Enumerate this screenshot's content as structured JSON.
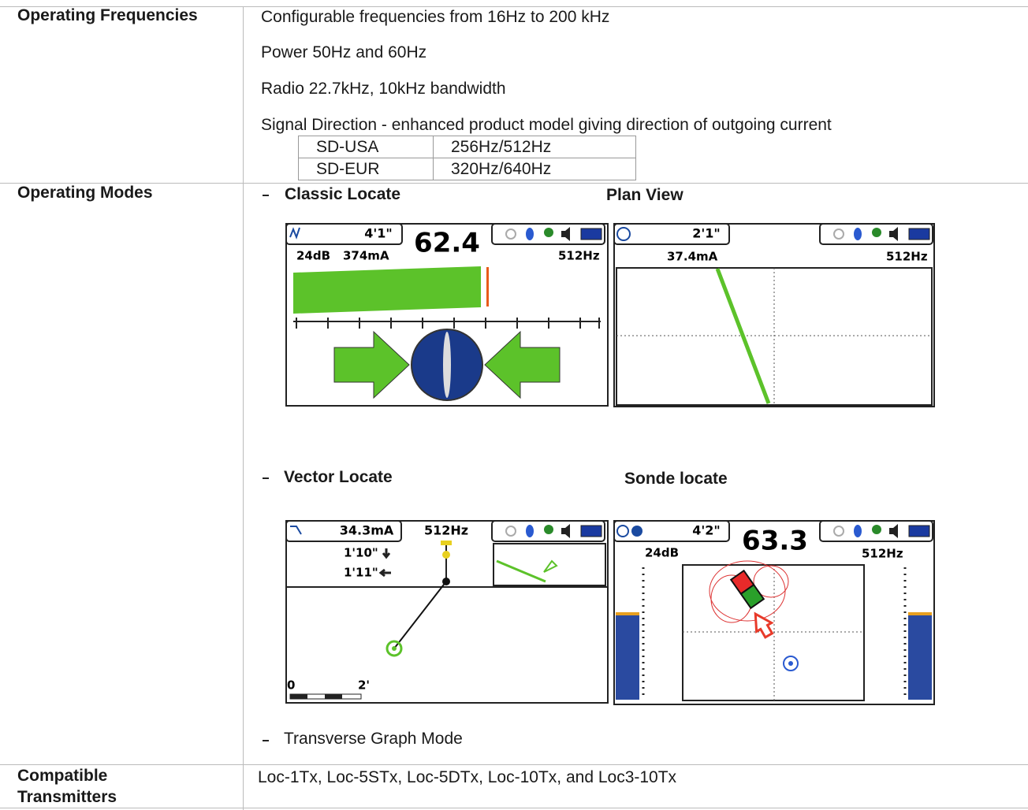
{
  "table": {
    "rows": [
      {
        "label": "Operating Frequencies",
        "lines": [
          "Configurable frequencies from 16Hz to 200 kHz",
          "Power 50Hz and 60Hz",
          "Radio 22.7kHz, 10kHz bandwidth",
          "Signal Direction - enhanced product model giving direction of outgoing current"
        ],
        "sub_table": [
          [
            "SD-USA",
            "256Hz/512Hz"
          ],
          [
            "SD-EUR",
            "320Hz/640Hz"
          ]
        ]
      },
      {
        "label": "Operating Modes",
        "modes": [
          {
            "title": "Classic Locate",
            "screen": {
              "depth": "4'1\"",
              "reading": "62.4",
              "gain": "24dB",
              "current": "374mA",
              "frequency": "512Hz"
            }
          },
          {
            "title": "Plan View",
            "screen": {
              "depth": "2'1\"",
              "current": "37.4mA",
              "frequency": "512Hz"
            }
          },
          {
            "title": "Vector Locate",
            "screen": {
              "current": "34.3mA",
              "frequency": "512Hz",
              "depth": "1'10\"",
              "offset": "1'11\"",
              "scale_start": "0",
              "scale_end": "2'"
            }
          },
          {
            "title": "Sonde locate",
            "screen": {
              "depth": "4'2\"",
              "reading": "63.3",
              "gain": "24dB",
              "frequency": "512Hz"
            }
          },
          {
            "title": "Transverse Graph Mode"
          }
        ]
      },
      {
        "label": "Compatible Transmitters",
        "lines": [
          "Loc-1Tx, Loc-5STx, Loc-5DTx, Loc-10Tx, and Loc3-10Tx"
        ]
      }
    ]
  }
}
